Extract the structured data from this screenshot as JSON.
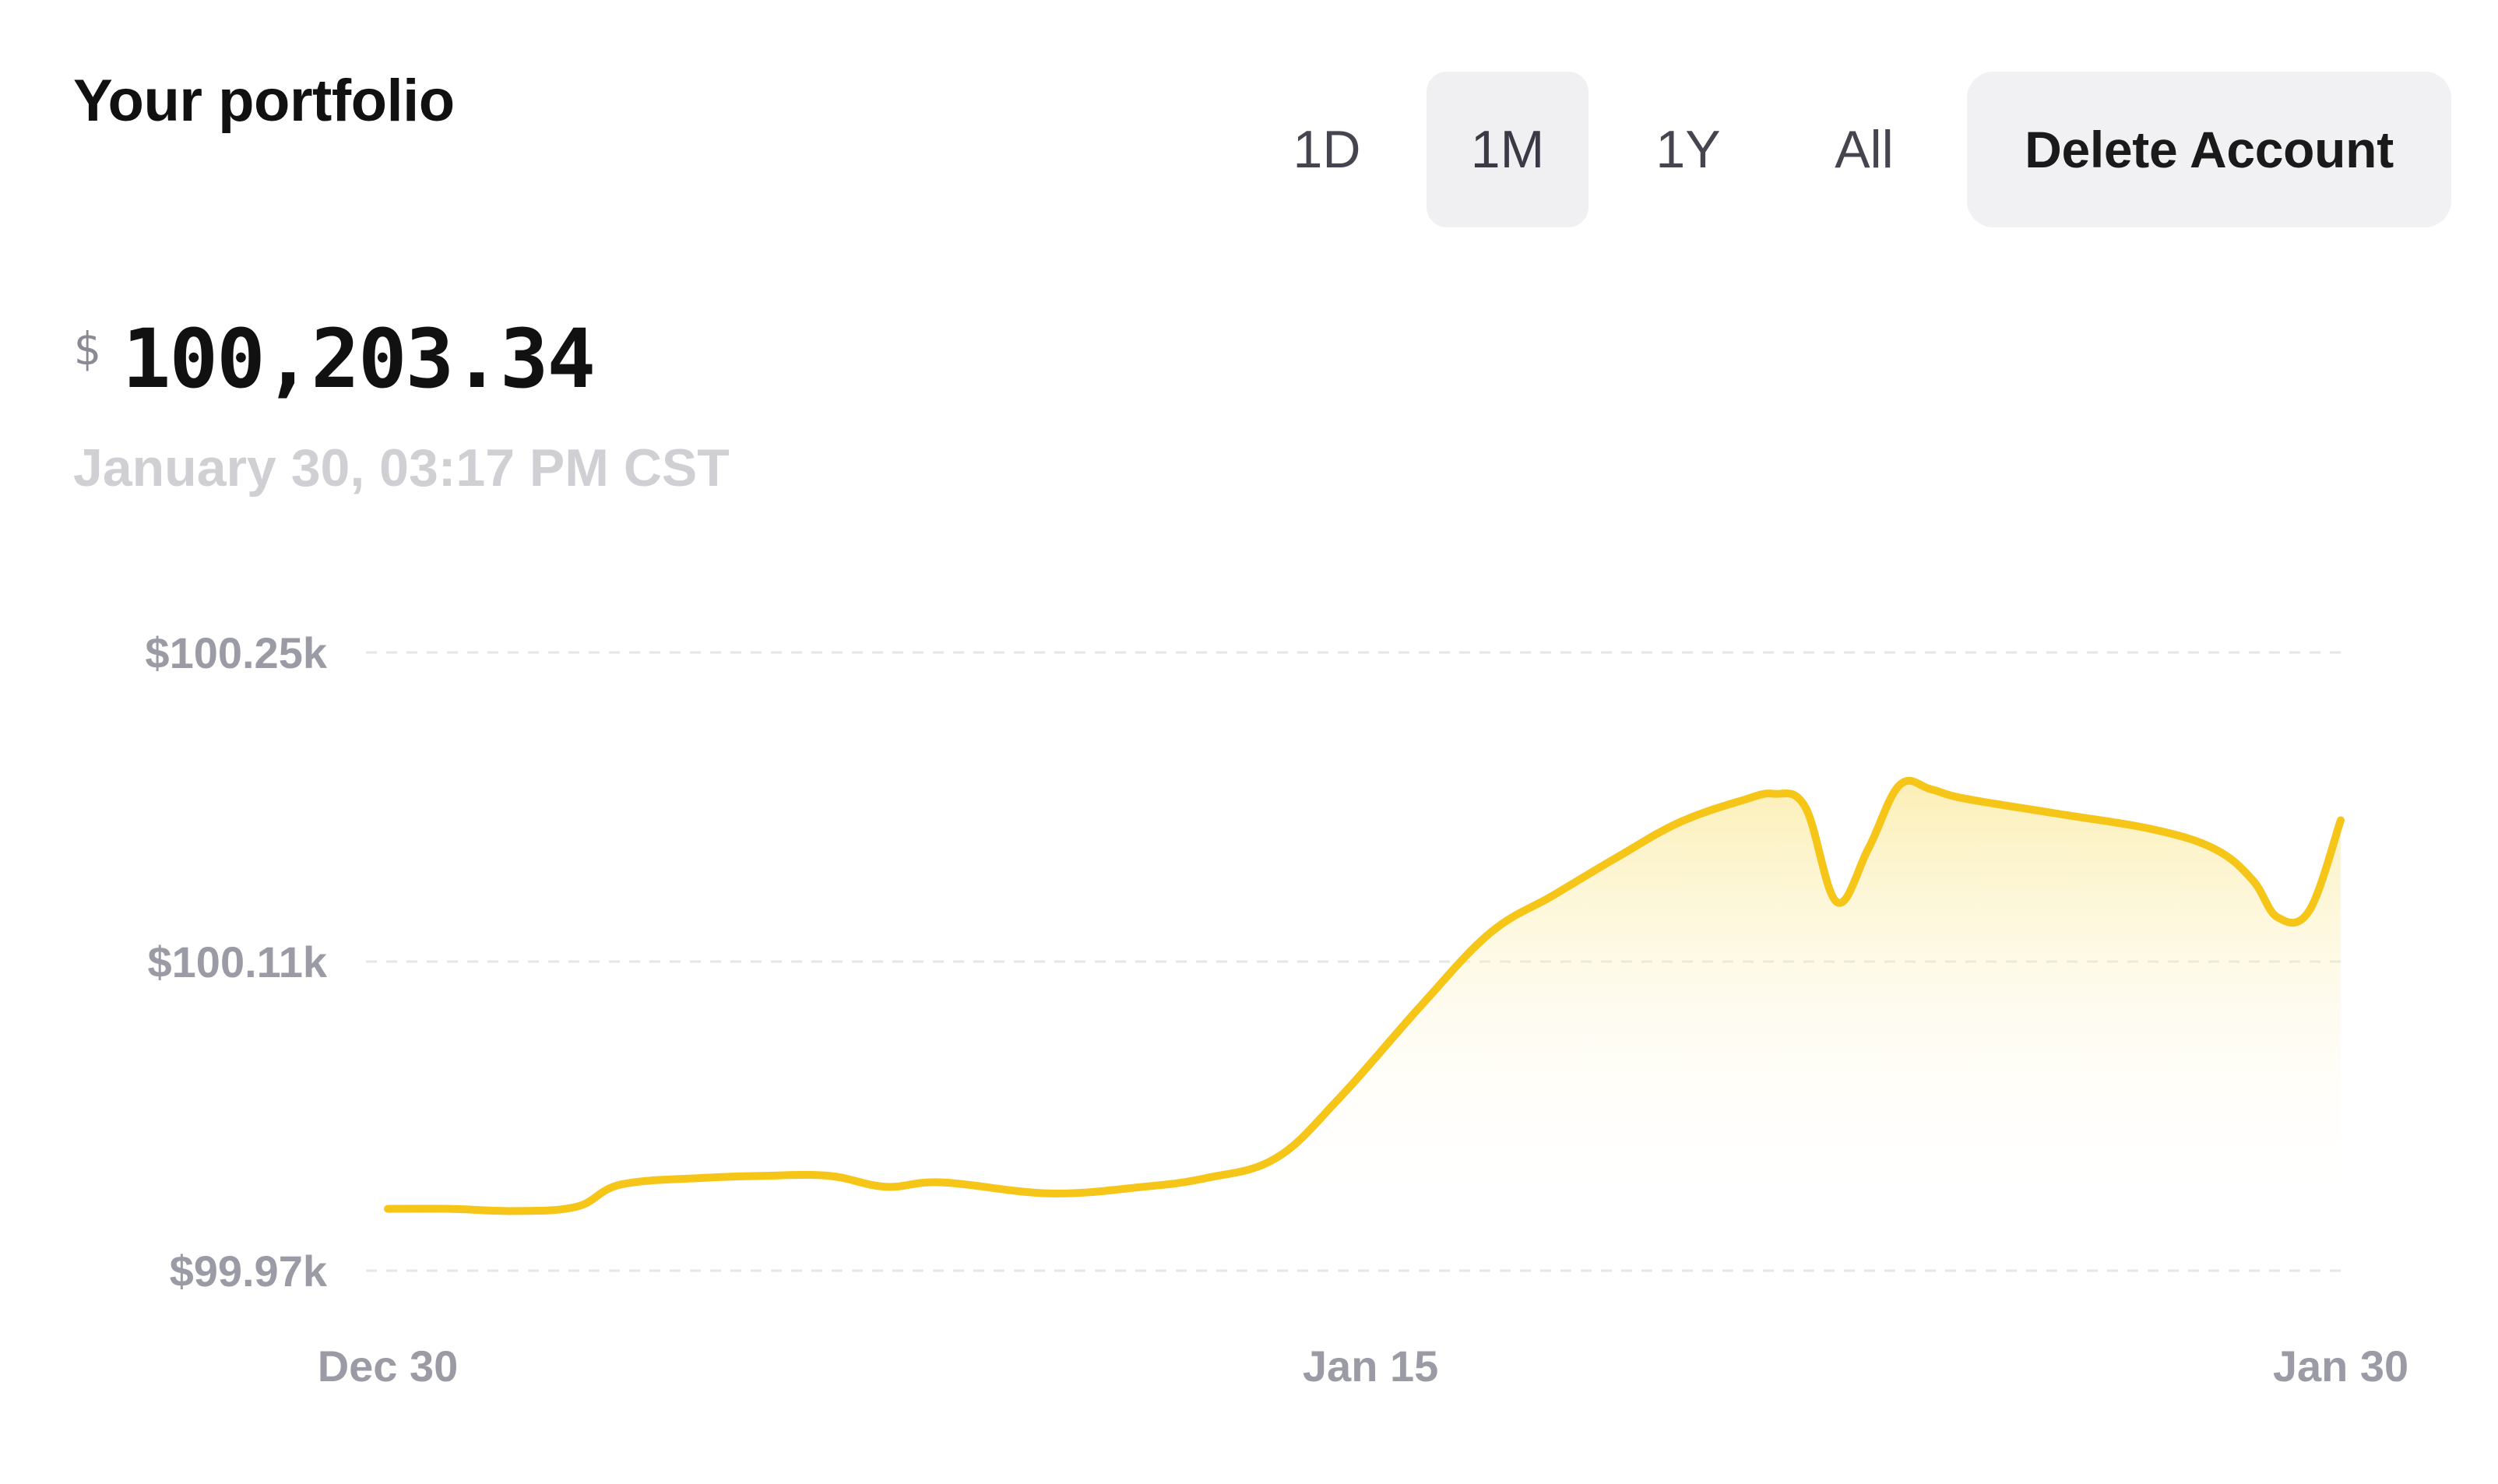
{
  "header": {
    "title": "Your portfolio",
    "tabs": [
      {
        "label": "1D",
        "active": false
      },
      {
        "label": "1M",
        "active": true
      },
      {
        "label": "1Y",
        "active": false
      },
      {
        "label": "All",
        "active": false
      }
    ],
    "delete_label": "Delete Account"
  },
  "balance": {
    "currency_symbol": "$",
    "amount": "100,203.34",
    "timestamp": "January 30, 03:17 PM CST"
  },
  "colors": {
    "line": "#F5C518",
    "fill_top": "#F9E27A",
    "grid": "#e6e6ea",
    "axis_text": "#9b9ba5"
  },
  "chart_data": {
    "type": "area",
    "title": "",
    "xlabel": "",
    "ylabel": "",
    "ylim": [
      99970,
      100250
    ],
    "yticks": [
      {
        "value": 100250,
        "label": "$100.25k"
      },
      {
        "value": 100110,
        "label": "$100.11k"
      },
      {
        "value": 99970,
        "label": "$99.97k"
      }
    ],
    "xticks": [
      {
        "value": 0,
        "label": "Dec 30"
      },
      {
        "value": 15.6,
        "label": "Jan 15"
      },
      {
        "value": 31,
        "label": "Jan 30"
      }
    ],
    "grid": true,
    "legend": "none",
    "points": [
      {
        "x": 0,
        "y": 99998
      },
      {
        "x": 1.0,
        "y": 99998
      },
      {
        "x": 2.0,
        "y": 99997
      },
      {
        "x": 3.0,
        "y": 99999
      },
      {
        "x": 3.7,
        "y": 100009
      },
      {
        "x": 5.0,
        "y": 100012
      },
      {
        "x": 6.0,
        "y": 100013
      },
      {
        "x": 7.0,
        "y": 100013
      },
      {
        "x": 7.9,
        "y": 100008
      },
      {
        "x": 8.8,
        "y": 100010
      },
      {
        "x": 10.5,
        "y": 100005
      },
      {
        "x": 12.0,
        "y": 100008
      },
      {
        "x": 13.0,
        "y": 100012
      },
      {
        "x": 14.1,
        "y": 100021
      },
      {
        "x": 15.1,
        "y": 100048
      },
      {
        "x": 16.4,
        "y": 100090
      },
      {
        "x": 17.5,
        "y": 100123
      },
      {
        "x": 18.5,
        "y": 100140
      },
      {
        "x": 19.5,
        "y": 100157
      },
      {
        "x": 20.5,
        "y": 100173
      },
      {
        "x": 21.5,
        "y": 100183
      },
      {
        "x": 22.0,
        "y": 100186
      },
      {
        "x": 22.5,
        "y": 100180
      },
      {
        "x": 23.0,
        "y": 100137
      },
      {
        "x": 23.5,
        "y": 100161
      },
      {
        "x": 24.0,
        "y": 100190
      },
      {
        "x": 24.5,
        "y": 100188
      },
      {
        "x": 25.0,
        "y": 100184
      },
      {
        "x": 26.5,
        "y": 100177
      },
      {
        "x": 28.0,
        "y": 100170
      },
      {
        "x": 29.0,
        "y": 100161
      },
      {
        "x": 29.6,
        "y": 100147
      },
      {
        "x": 30.0,
        "y": 100130
      },
      {
        "x": 30.5,
        "y": 100133
      },
      {
        "x": 31.0,
        "y": 100174
      }
    ]
  }
}
